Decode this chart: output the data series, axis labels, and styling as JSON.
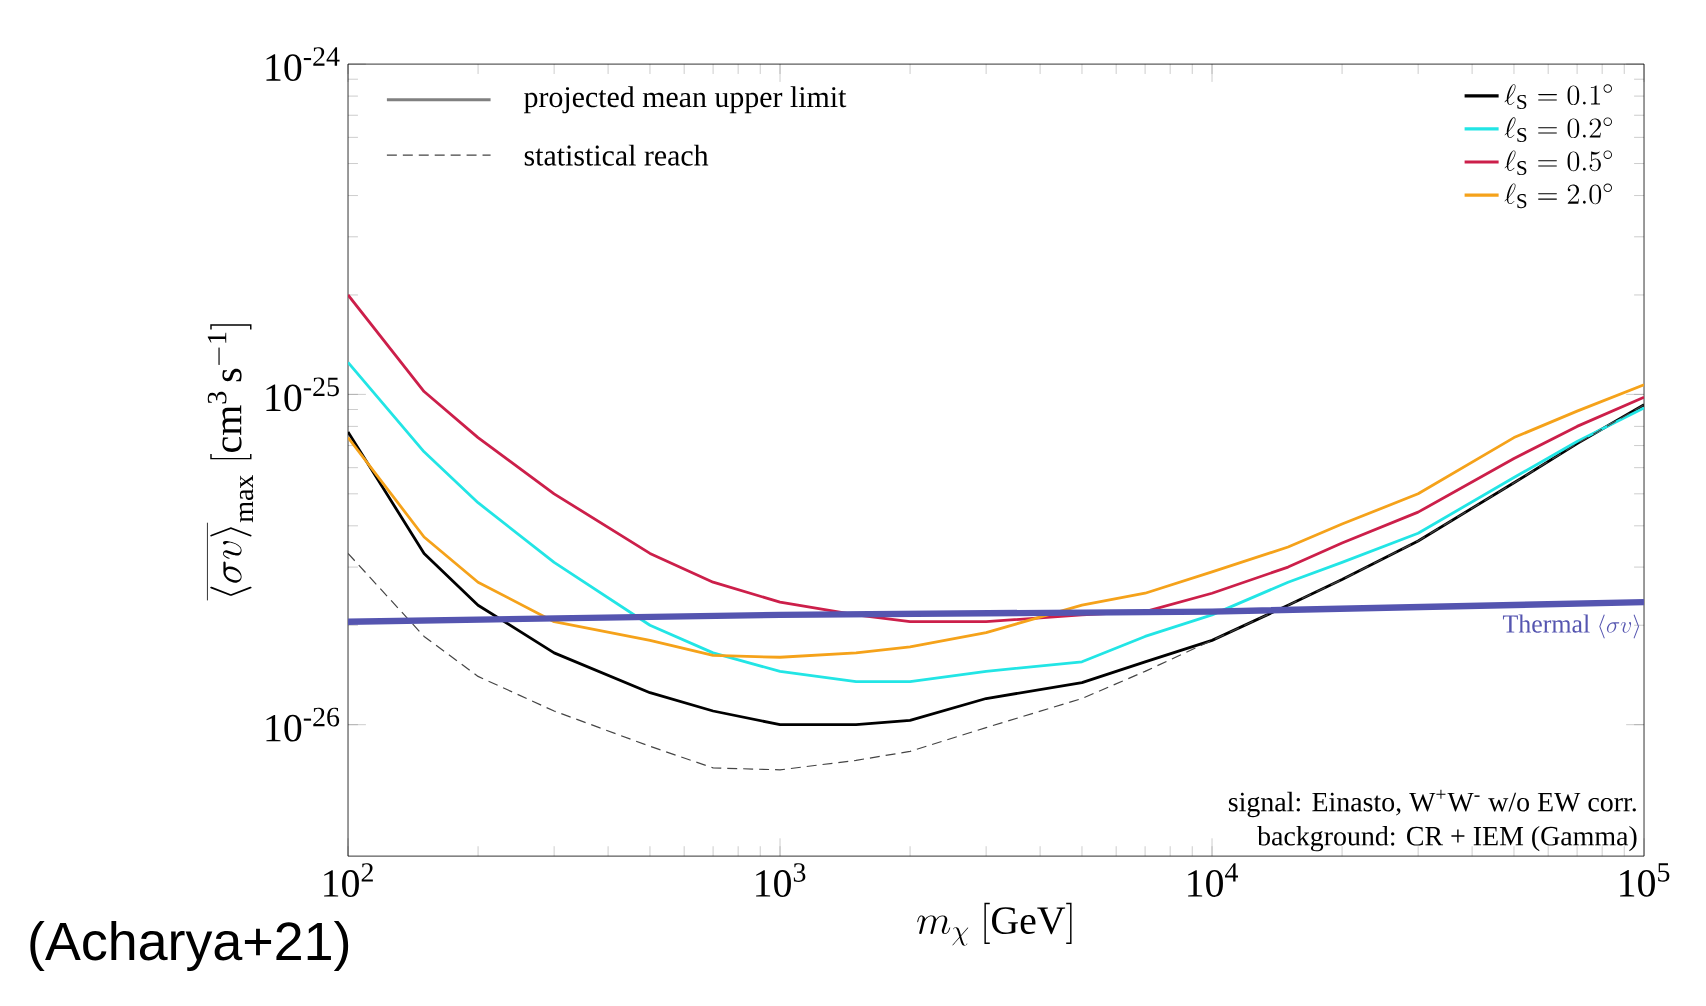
{
  "chart_data": {
    "type": "line",
    "log": "xy",
    "xlabel": "m_\\chi\\ [\\mathrm{GeV}]",
    "ylabel": "\\overline{\\langle\\sigma v\\rangle}_{\\mathrm{max}}\\ [\\mathrm{cm^3\\,s^{-1}}]",
    "xlim": [
      100,
      100000
    ],
    "ylim": [
      4e-27,
      1e-24
    ],
    "xticks": [
      {
        "value": 100,
        "label": "10$^{2}$"
      },
      {
        "value": 1000,
        "label": "10$^{3}$"
      },
      {
        "value": 10000,
        "label": "10$^{4}$"
      },
      {
        "value": 100000,
        "label": "10$^{5}$"
      }
    ],
    "yticks": [
      {
        "value": 1e-26,
        "label": "10$^{-26}$"
      },
      {
        "value": 1e-25,
        "label": "10$^{-25}$"
      },
      {
        "value": 1e-24,
        "label": "10$^{-24}$"
      }
    ],
    "legend": "top right",
    "x": [
      100,
      150,
      200,
      300,
      500,
      700,
      1000,
      1500,
      2000,
      3000,
      5000,
      7000,
      10000,
      15000,
      20000,
      30000,
      50000,
      70000,
      100000
    ],
    "series": [
      {
        "name": "\\ell_{\\mathrm{S}} = 0.1^\\circ",
        "color": "#000000",
        "values": [
          7.7e-26,
          3.3e-26,
          2.3e-26,
          1.65e-26,
          1.25e-26,
          1.1e-26,
          1e-26,
          1e-26,
          1.03e-26,
          1.2e-26,
          1.34e-26,
          1.55e-26,
          1.8e-26,
          2.3e-26,
          2.75e-26,
          3.6e-26,
          5.4e-26,
          7.1e-26,
          9.3e-26
        ]
      },
      {
        "name": "\\ell_{\\mathrm{S}} = 0.2^\\circ",
        "color": "#22e5e5",
        "values": [
          1.25e-25,
          6.7e-26,
          4.7e-26,
          3.1e-26,
          2e-26,
          1.65e-26,
          1.45e-26,
          1.35e-26,
          1.35e-26,
          1.45e-26,
          1.55e-26,
          1.85e-26,
          2.15e-26,
          2.7e-26,
          3.1e-26,
          3.8e-26,
          5.6e-26,
          7.2e-26,
          9.1e-26
        ]
      },
      {
        "name": "\\ell_{\\mathrm{S}} = 0.5^\\circ",
        "color": "#cc1f4a",
        "values": [
          2e-25,
          1.02e-25,
          7.4e-26,
          5e-26,
          3.3e-26,
          2.7e-26,
          2.35e-26,
          2.15e-26,
          2.05e-26,
          2.05e-26,
          2.15e-26,
          2.2e-26,
          2.5e-26,
          3e-26,
          3.55e-26,
          4.4e-26,
          6.4e-26,
          8e-26,
          9.8e-26
        ]
      },
      {
        "name": "\\ell_{\\mathrm{S}} = 2.0^\\circ",
        "color": "#f5a21a",
        "values": [
          7.4e-26,
          3.7e-26,
          2.7e-26,
          2.05e-26,
          1.8e-26,
          1.62e-26,
          1.6e-26,
          1.65e-26,
          1.72e-26,
          1.9e-26,
          2.3e-26,
          2.5e-26,
          2.9e-26,
          3.45e-26,
          4.05e-26,
          5e-26,
          7.4e-26,
          8.9e-26,
          1.07e-25
        ]
      },
      {
        "name": "statistical reach",
        "color": "#444444",
        "line_style": "dashed",
        "values": [
          3.3e-26,
          1.85e-26,
          1.4e-26,
          1.1e-26,
          8.6e-27,
          7.4e-27,
          7.3e-27,
          7.8e-27,
          8.3e-27,
          9.8e-27,
          1.2e-26,
          1.45e-26,
          1.8e-26,
          2.3e-26,
          2.75e-26,
          3.6e-26,
          5.4e-26,
          7.1e-26,
          9.3e-26
        ]
      },
      {
        "name": "\\mbox{Thermal }\\langle\\sigma v\\rangle",
        "color": "#5555b0",
        "x": [
          100,
          1000,
          10000,
          100000
        ],
        "values": [
          2.05e-26,
          2.15e-26,
          2.2e-26,
          2.35e-26
        ]
      }
    ],
    "annotations": [
      "projected mean upper limit",
      "signal: Einasto, W$^{+}$W$^{-}$ w/o EW corr.",
      "background: CR + IEM (Gamma)",
      "(Acharya+21)"
    ]
  }
}
